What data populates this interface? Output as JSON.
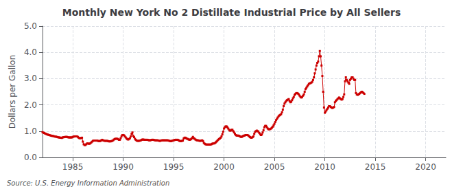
{
  "chart_data": {
    "type": "line",
    "title": "Monthly New York No 2 Distillate Industrial Price by All Sellers",
    "ylabel": "Dollars per Gallon",
    "annotations": [
      "Source: U.S. Energy Information Administration"
    ],
    "color": "#cc0000",
    "marker": "square",
    "grid": true,
    "xlim": [
      1982,
      2022
    ],
    "ylim": [
      0,
      5
    ],
    "xticks": [
      1985,
      1990,
      1995,
      2000,
      2005,
      2010,
      2015,
      2020
    ],
    "yticks": [
      {
        "value": 0,
        "label": "0.0"
      },
      {
        "value": 1,
        "label": "1.0"
      },
      {
        "value": 2,
        "label": "2.0"
      },
      {
        "value": 3,
        "label": "3.0"
      },
      {
        "value": 4,
        "label": "4.0"
      },
      {
        "value": 5,
        "label": "5.0"
      }
    ],
    "x": [
      1982,
      1982.0833,
      1982.1667,
      1982.25,
      1982.3333,
      1982.4167,
      1982.5,
      1982.5833,
      1982.6667,
      1982.75,
      1982.8333,
      1982.9167,
      1983,
      1983.0833,
      1983.1667,
      1983.25,
      1983.3333,
      1983.4167,
      1983.5,
      1983.5833,
      1983.6667,
      1983.75,
      1983.8333,
      1983.9167,
      1984,
      1984.0833,
      1984.1667,
      1984.25,
      1984.3333,
      1984.4167,
      1984.5,
      1984.5833,
      1984.6667,
      1984.75,
      1984.8333,
      1984.9167,
      1985,
      1985.0833,
      1985.1667,
      1985.25,
      1985.3333,
      1985.4167,
      1985.5,
      1985.5833,
      1985.6667,
      1985.75,
      1985.8333,
      1985.9167,
      1986,
      1986.0833,
      1986.1667,
      1986.25,
      1986.3333,
      1986.4167,
      1986.5,
      1986.5833,
      1986.6667,
      1986.75,
      1986.8333,
      1986.9167,
      1987,
      1987.0833,
      1987.1667,
      1987.25,
      1987.3333,
      1987.4167,
      1987.5,
      1987.5833,
      1987.6667,
      1987.75,
      1987.8333,
      1987.9167,
      1988,
      1988.0833,
      1988.1667,
      1988.25,
      1988.3333,
      1988.4167,
      1988.5,
      1988.5833,
      1988.6667,
      1988.75,
      1988.8333,
      1988.9167,
      1989,
      1989.0833,
      1989.1667,
      1989.25,
      1989.3333,
      1989.4167,
      1989.5,
      1989.5833,
      1989.6667,
      1989.75,
      1989.8333,
      1989.9167,
      1990,
      1990.0833,
      1990.1667,
      1990.25,
      1990.3333,
      1990.4167,
      1990.5,
      1990.5833,
      1990.6667,
      1990.75,
      1990.8333,
      1990.9167,
      1991,
      1991.0833,
      1991.1667,
      1991.25,
      1991.3333,
      1991.4167,
      1991.5,
      1991.5833,
      1991.6667,
      1991.75,
      1991.8333,
      1991.9167,
      1992,
      1992.0833,
      1992.1667,
      1992.25,
      1992.3333,
      1992.4167,
      1992.5,
      1992.5833,
      1992.6667,
      1992.75,
      1992.8333,
      1992.9167,
      1993,
      1993.0833,
      1993.1667,
      1993.25,
      1993.3333,
      1993.4167,
      1993.5,
      1993.5833,
      1993.6667,
      1993.75,
      1993.8333,
      1993.9167,
      1994,
      1994.0833,
      1994.1667,
      1994.25,
      1994.3333,
      1994.4167,
      1994.5,
      1994.5833,
      1994.6667,
      1994.75,
      1994.8333,
      1994.9167,
      1995,
      1995.0833,
      1995.1667,
      1995.25,
      1995.3333,
      1995.4167,
      1995.5,
      1995.5833,
      1995.6667,
      1995.75,
      1995.8333,
      1995.9167,
      1996,
      1996.0833,
      1996.1667,
      1996.25,
      1996.3333,
      1996.4167,
      1996.5,
      1996.5833,
      1996.6667,
      1996.75,
      1996.8333,
      1996.9167,
      1997,
      1997.0833,
      1997.1667,
      1997.25,
      1997.3333,
      1997.4167,
      1997.5,
      1997.5833,
      1997.6667,
      1997.75,
      1997.8333,
      1997.9167,
      1998,
      1998.0833,
      1998.1667,
      1998.25,
      1998.3333,
      1998.4167,
      1998.5,
      1998.5833,
      1998.6667,
      1998.75,
      1998.8333,
      1998.9167,
      1999,
      1999.0833,
      1999.1667,
      1999.25,
      1999.3333,
      1999.4167,
      1999.5,
      1999.5833,
      1999.6667,
      1999.75,
      1999.8333,
      1999.9167,
      2000,
      2000.0833,
      2000.1667,
      2000.25,
      2000.3333,
      2000.4167,
      2000.5,
      2000.5833,
      2000.6667,
      2000.75,
      2000.8333,
      2000.9167,
      2001,
      2001.0833,
      2001.1667,
      2001.25,
      2001.3333,
      2001.4167,
      2001.5,
      2001.5833,
      2001.6667,
      2001.75,
      2001.8333,
      2001.9167,
      2002,
      2002.0833,
      2002.1667,
      2002.25,
      2002.3333,
      2002.4167,
      2002.5,
      2002.5833,
      2002.6667,
      2002.75,
      2002.8333,
      2002.9167,
      2003,
      2003.0833,
      2003.1667,
      2003.25,
      2003.3333,
      2003.4167,
      2003.5,
      2003.5833,
      2003.6667,
      2003.75,
      2003.8333,
      2003.9167,
      2004,
      2004.0833,
      2004.1667,
      2004.25,
      2004.3333,
      2004.4167,
      2004.5,
      2004.5833,
      2004.6667,
      2004.75,
      2004.8333,
      2004.9167,
      2005,
      2005.0833,
      2005.1667,
      2005.25,
      2005.3333,
      2005.4167,
      2005.5,
      2005.5833,
      2005.6667,
      2005.75,
      2005.8333,
      2005.9167,
      2006,
      2006.0833,
      2006.1667,
      2006.25,
      2006.3333,
      2006.4167,
      2006.5,
      2006.5833,
      2006.6667,
      2006.75,
      2006.8333,
      2006.9167,
      2007,
      2007.0833,
      2007.1667,
      2007.25,
      2007.3333,
      2007.4167,
      2007.5,
      2007.5833,
      2007.6667,
      2007.75,
      2007.8333,
      2007.9167,
      2008,
      2008.0833,
      2008.1667,
      2008.25,
      2008.3333,
      2008.4167,
      2008.5,
      2008.5833,
      2008.6667,
      2008.75,
      2008.8333,
      2008.9167,
      2009,
      2009.0833,
      2009.1667,
      2009.25,
      2009.3333,
      2009.4167,
      2009.5,
      2009.5833,
      2009.6667,
      2009.75,
      2009.8333,
      2009.9167,
      2010,
      2010.0833,
      2010.1667,
      2010.25,
      2010.3333,
      2010.4167,
      2010.5,
      2010.5833,
      2010.6667,
      2010.75,
      2010.8333,
      2010.9167,
      2011,
      2011.0833,
      2011.1667,
      2011.25,
      2011.3333,
      2011.4167,
      2011.5,
      2011.5833,
      2011.6667,
      2011.75,
      2011.8333,
      2011.9167,
      2012,
      2012.0833,
      2012.1667,
      2012.25,
      2012.3333,
      2012.4167,
      2012.5,
      2012.5833,
      2012.6667,
      2012.75,
      2012.8333,
      2012.9167,
      2013,
      2013.0833,
      2013.1667,
      2013.25,
      2013.3333,
      2013.4167,
      2013.5,
      2013.5833,
      2013.6667,
      2013.75,
      2013.8333,
      2013.9167
    ],
    "values": [
      0.96,
      0.94,
      0.93,
      0.91,
      0.9,
      0.88,
      0.87,
      0.86,
      0.85,
      0.84,
      0.83,
      0.82,
      0.82,
      0.81,
      0.8,
      0.79,
      0.79,
      0.78,
      0.77,
      0.76,
      0.76,
      0.75,
      0.75,
      0.74,
      0.76,
      0.77,
      0.77,
      0.78,
      0.78,
      0.78,
      0.77,
      0.76,
      0.76,
      0.76,
      0.76,
      0.76,
      0.78,
      0.79,
      0.8,
      0.8,
      0.8,
      0.8,
      0.78,
      0.75,
      0.73,
      0.73,
      0.74,
      0.75,
      0.6,
      0.5,
      0.47,
      0.47,
      0.5,
      0.53,
      0.53,
      0.52,
      0.52,
      0.54,
      0.57,
      0.6,
      0.63,
      0.64,
      0.64,
      0.64,
      0.64,
      0.64,
      0.63,
      0.62,
      0.62,
      0.63,
      0.65,
      0.67,
      0.65,
      0.64,
      0.63,
      0.63,
      0.63,
      0.63,
      0.62,
      0.61,
      0.61,
      0.61,
      0.62,
      0.63,
      0.65,
      0.68,
      0.7,
      0.71,
      0.71,
      0.71,
      0.69,
      0.67,
      0.67,
      0.73,
      0.8,
      0.85,
      0.85,
      0.84,
      0.8,
      0.76,
      0.72,
      0.69,
      0.68,
      0.7,
      0.73,
      0.8,
      0.9,
      0.95,
      0.82,
      0.77,
      0.71,
      0.67,
      0.64,
      0.63,
      0.63,
      0.63,
      0.64,
      0.65,
      0.67,
      0.68,
      0.68,
      0.67,
      0.67,
      0.67,
      0.67,
      0.67,
      0.66,
      0.65,
      0.65,
      0.66,
      0.67,
      0.67,
      0.67,
      0.66,
      0.65,
      0.65,
      0.65,
      0.65,
      0.64,
      0.63,
      0.63,
      0.64,
      0.65,
      0.65,
      0.65,
      0.65,
      0.65,
      0.65,
      0.65,
      0.65,
      0.64,
      0.63,
      0.62,
      0.62,
      0.63,
      0.64,
      0.65,
      0.66,
      0.67,
      0.67,
      0.67,
      0.67,
      0.65,
      0.63,
      0.62,
      0.62,
      0.63,
      0.64,
      0.72,
      0.75,
      0.75,
      0.73,
      0.71,
      0.7,
      0.68,
      0.67,
      0.68,
      0.7,
      0.74,
      0.78,
      0.73,
      0.71,
      0.68,
      0.66,
      0.65,
      0.65,
      0.64,
      0.63,
      0.63,
      0.64,
      0.65,
      0.62,
      0.55,
      0.52,
      0.5,
      0.49,
      0.49,
      0.49,
      0.49,
      0.49,
      0.49,
      0.5,
      0.52,
      0.53,
      0.53,
      0.54,
      0.57,
      0.6,
      0.63,
      0.67,
      0.7,
      0.72,
      0.75,
      0.8,
      0.88,
      0.98,
      1.1,
      1.15,
      1.18,
      1.18,
      1.15,
      1.1,
      1.05,
      1.02,
      1.02,
      1.05,
      1.05,
      1.0,
      0.95,
      0.9,
      0.85,
      0.83,
      0.83,
      0.83,
      0.82,
      0.8,
      0.78,
      0.78,
      0.8,
      0.82,
      0.83,
      0.84,
      0.85,
      0.85,
      0.85,
      0.83,
      0.8,
      0.77,
      0.75,
      0.75,
      0.77,
      0.8,
      0.9,
      0.97,
      1.0,
      1.02,
      1.0,
      0.98,
      0.93,
      0.88,
      0.85,
      0.87,
      0.95,
      1.03,
      1.15,
      1.2,
      1.2,
      1.15,
      1.1,
      1.07,
      1.07,
      1.08,
      1.1,
      1.13,
      1.17,
      1.22,
      1.28,
      1.35,
      1.42,
      1.47,
      1.52,
      1.57,
      1.6,
      1.62,
      1.65,
      1.72,
      1.82,
      1.95,
      2.05,
      2.1,
      2.15,
      2.18,
      2.2,
      2.22,
      2.15,
      2.1,
      2.12,
      2.18,
      2.25,
      2.3,
      2.38,
      2.42,
      2.45,
      2.45,
      2.43,
      2.4,
      2.35,
      2.3,
      2.28,
      2.3,
      2.35,
      2.4,
      2.5,
      2.6,
      2.65,
      2.7,
      2.75,
      2.8,
      2.82,
      2.83,
      2.85,
      2.88,
      2.95,
      3.05,
      3.2,
      3.35,
      3.5,
      3.6,
      3.65,
      3.85,
      4.05,
      3.85,
      3.5,
      3.1,
      2.5,
      1.9,
      1.7,
      1.75,
      1.8,
      1.85,
      1.9,
      1.95,
      1.95,
      1.92,
      1.9,
      1.88,
      1.9,
      1.92,
      2.1,
      2.15,
      2.18,
      2.22,
      2.25,
      2.28,
      2.25,
      2.22,
      2.2,
      2.22,
      2.3,
      2.4,
      2.9,
      3.05,
      2.95,
      2.9,
      2.85,
      2.8,
      2.95,
      3.0,
      3.05,
      3.05,
      3.0,
      2.95,
      2.95,
      2.45,
      2.4,
      2.38,
      2.4,
      2.42,
      2.45,
      2.48,
      2.5,
      2.48,
      2.45,
      2.42
    ]
  }
}
